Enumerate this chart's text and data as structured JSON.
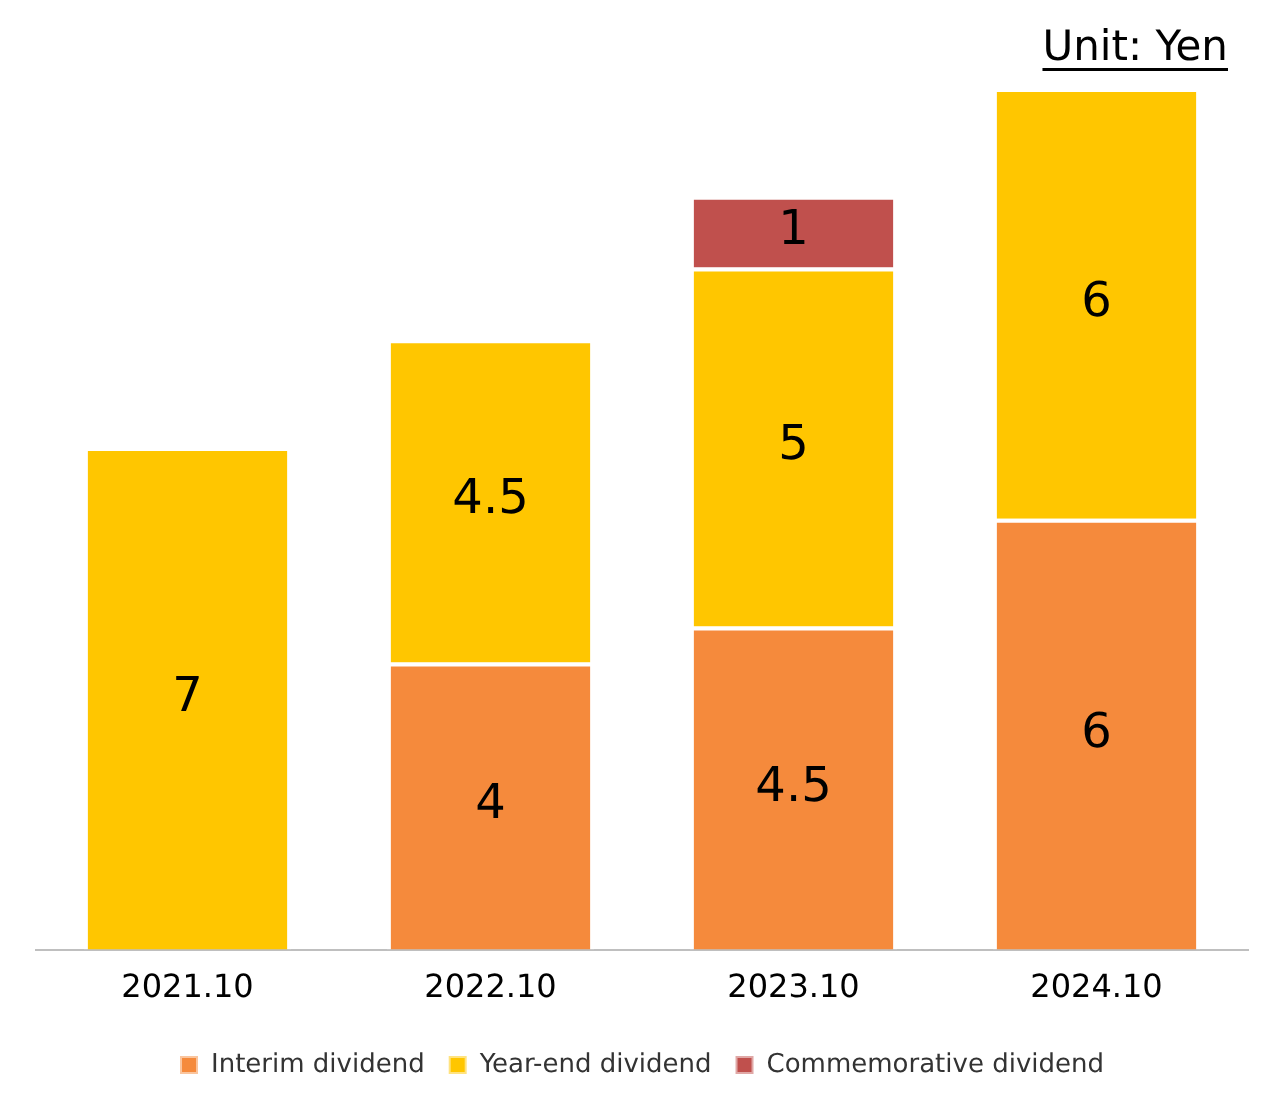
{
  "chart_data": {
    "type": "bar",
    "stacked": true,
    "categories": [
      "2021.10",
      "2022.10",
      "2023.10",
      "2024.10"
    ],
    "series": [
      {
        "name": "Interim dividend",
        "color": "#f58a3c",
        "values": [
          null,
          4,
          4.5,
          6
        ]
      },
      {
        "name": "Year-end dividend",
        "color": "#ffc600",
        "values": [
          7,
          4.5,
          5,
          6
        ]
      },
      {
        "name": "Commemorative dividend",
        "color": "#c0504d",
        "values": [
          null,
          null,
          1,
          null
        ]
      }
    ],
    "data_labels": true,
    "tick_labels": "x",
    "grid": false,
    "legend": "bottom",
    "annotations": [
      "Unit: Yen"
    ]
  }
}
